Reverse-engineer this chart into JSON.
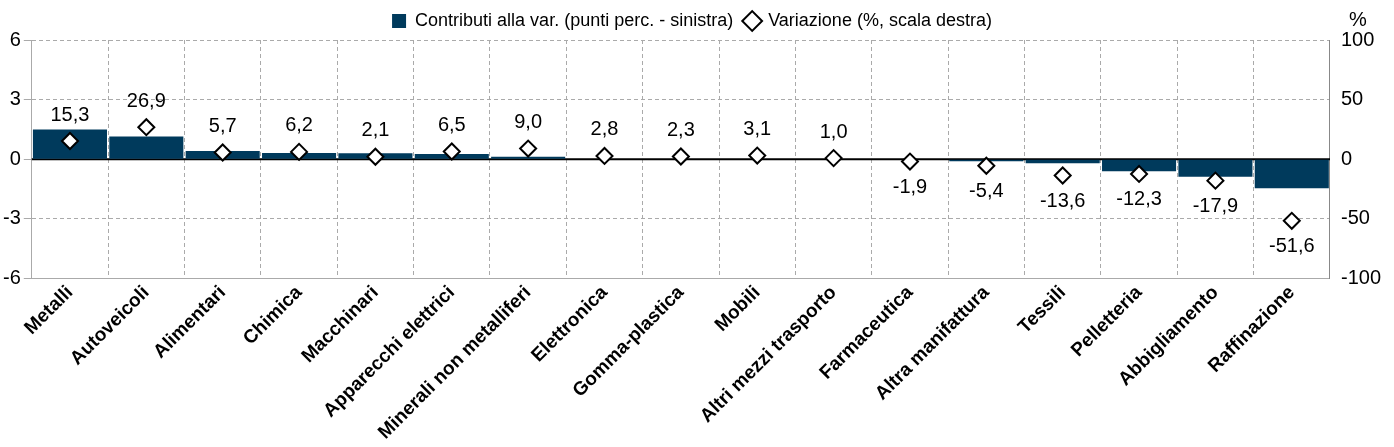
{
  "chart_data": {
    "type": "bar",
    "categories": [
      "Metalli",
      "Autoveicoli",
      "Alimentari",
      "Chimica",
      "Macchinari",
      "Apparecchi elettrici",
      "Minerali non metalliferi",
      "Elettronica",
      "Gomma-plastica",
      "Mobili",
      "Altri mezzi trasporto",
      "Farmaceutica",
      "Altra manifattura",
      "Tessili",
      "Pelletteria",
      "Abbigliamento",
      "Raffinazione"
    ],
    "series": [
      {
        "name": "Contributi alla var. (punti perc. - sinistra)",
        "color": "#003a5c",
        "values": [
          1.5,
          1.15,
          0.42,
          0.32,
          0.3,
          0.27,
          0.13,
          null,
          null,
          null,
          null,
          -0.02,
          -0.1,
          -0.2,
          -0.6,
          -0.88,
          -1.46
        ]
      },
      {
        "name": "Variazione (%, scala destra)",
        "type": "scatter",
        "axis": "y2",
        "color": "#000000",
        "marker": "diamond",
        "values": [
          15.3,
          26.9,
          5.7,
          6.2,
          2.1,
          6.5,
          9.0,
          2.8,
          2.3,
          3.1,
          1.0,
          -1.9,
          -5.4,
          -13.6,
          -12.3,
          -17.9,
          -51.6
        ],
        "value_labels": [
          "15,3",
          "26,9",
          "5,7",
          "6,2",
          "2,1",
          "6,5",
          "9,0",
          "2,8",
          "2,3",
          "3,1",
          "1,0",
          "-1,9",
          "-5,4",
          "-13,6",
          "-12,3",
          "-17,9",
          "-51,6"
        ]
      }
    ],
    "ylim": [
      -6,
      6
    ],
    "yticks": [
      -6,
      -3,
      0,
      3,
      6
    ],
    "y2lim": [
      -100,
      100
    ],
    "y2ticks": [
      -100,
      -50,
      0,
      50,
      100
    ],
    "y2label": "%",
    "ref_lines": [
      {
        "axis": "y",
        "value": 0,
        "color": "#000000"
      }
    ],
    "grid": true,
    "legend": "top"
  }
}
